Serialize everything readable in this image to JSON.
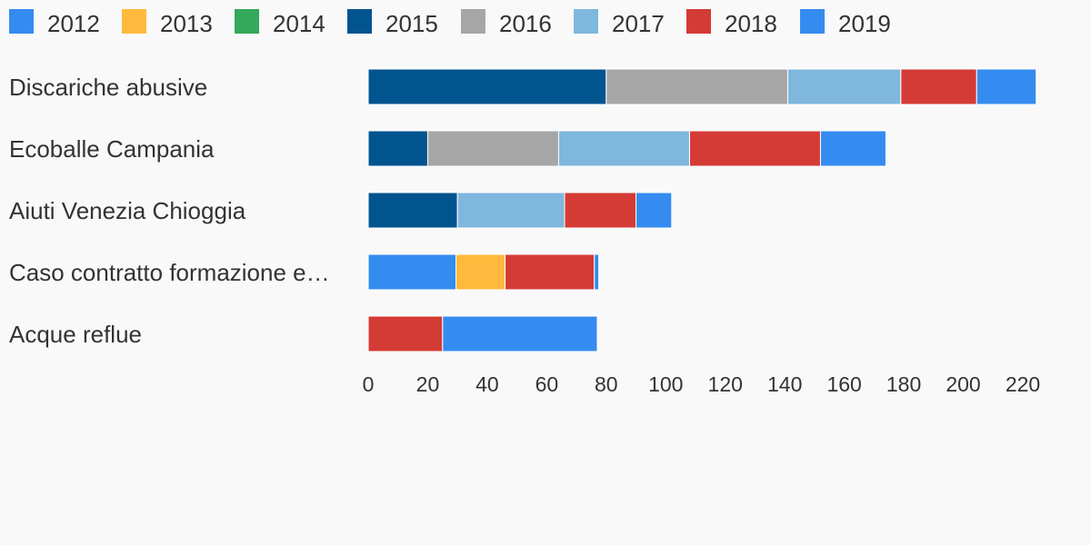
{
  "chart_data": {
    "type": "bar",
    "orientation": "horizontal",
    "stacked": true,
    "categories": [
      "Discariche abusive",
      "Ecoballe Campania",
      "Aiuti Venezia Chioggia",
      "Caso contratto formazione e…",
      "Acque reflue"
    ],
    "series": [
      {
        "name": "2012",
        "color": "#358cf0",
        "values": [
          0,
          0,
          0,
          29.5,
          0
        ]
      },
      {
        "name": "2013",
        "color": "#ffba3d",
        "values": [
          0,
          0,
          0,
          16.5,
          0
        ]
      },
      {
        "name": "2014",
        "color": "#34a85b",
        "values": [
          0,
          0,
          0,
          0,
          0
        ]
      },
      {
        "name": "2015",
        "color": "#02548f",
        "values": [
          80,
          20,
          30,
          0,
          0
        ]
      },
      {
        "name": "2016",
        "color": "#a6a6a6",
        "values": [
          61,
          44,
          0,
          0,
          0
        ]
      },
      {
        "name": "2017",
        "color": "#7fb7de",
        "values": [
          38,
          44,
          36,
          0,
          0
        ]
      },
      {
        "name": "2018",
        "color": "#d43b35",
        "values": [
          25.5,
          44,
          24,
          30,
          25
        ]
      },
      {
        "name": "2019",
        "color": "#358cf0",
        "values": [
          20,
          22,
          12,
          1.5,
          52
        ]
      }
    ],
    "xlim": [
      0,
      225
    ],
    "xticks": [
      0,
      20,
      40,
      60,
      80,
      100,
      120,
      140,
      160,
      180,
      200,
      220
    ],
    "title": "",
    "xlabel": "",
    "ylabel": "",
    "legend_position": "top",
    "grid": false
  }
}
